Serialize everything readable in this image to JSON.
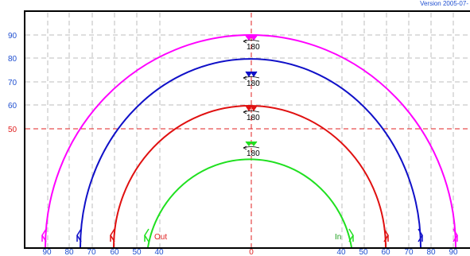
{
  "header": {
    "version": "Version 2005-07-"
  },
  "y_ticks": [
    {
      "label": "90",
      "color": "#1f4fd0"
    },
    {
      "label": "80",
      "color": "#1f4fd0"
    },
    {
      "label": "70",
      "color": "#1f4fd0"
    },
    {
      "label": "60",
      "color": "#1f4fd0"
    },
    {
      "label": "50",
      "color": "#e02020"
    }
  ],
  "x_ticks_left": [
    "90",
    "80",
    "70",
    "60",
    "50",
    "40"
  ],
  "x_ticks_center": "0",
  "x_ticks_right": [
    "40",
    "50",
    "60",
    "70",
    "80",
    "90"
  ],
  "labels": {
    "out": "Out",
    "in": "In",
    "angle": "180"
  },
  "arcs": [
    {
      "name": "magenta",
      "color": "#ff00ff"
    },
    {
      "name": "blue",
      "color": "#1010c8"
    },
    {
      "name": "red",
      "color": "#e01010"
    },
    {
      "name": "green",
      "color": "#20e020"
    }
  ],
  "colors": {
    "axis_label": "#1f4fd0",
    "dashed_red": "#e02020",
    "grid": "#bdbdbd",
    "frame": "#000000"
  }
}
